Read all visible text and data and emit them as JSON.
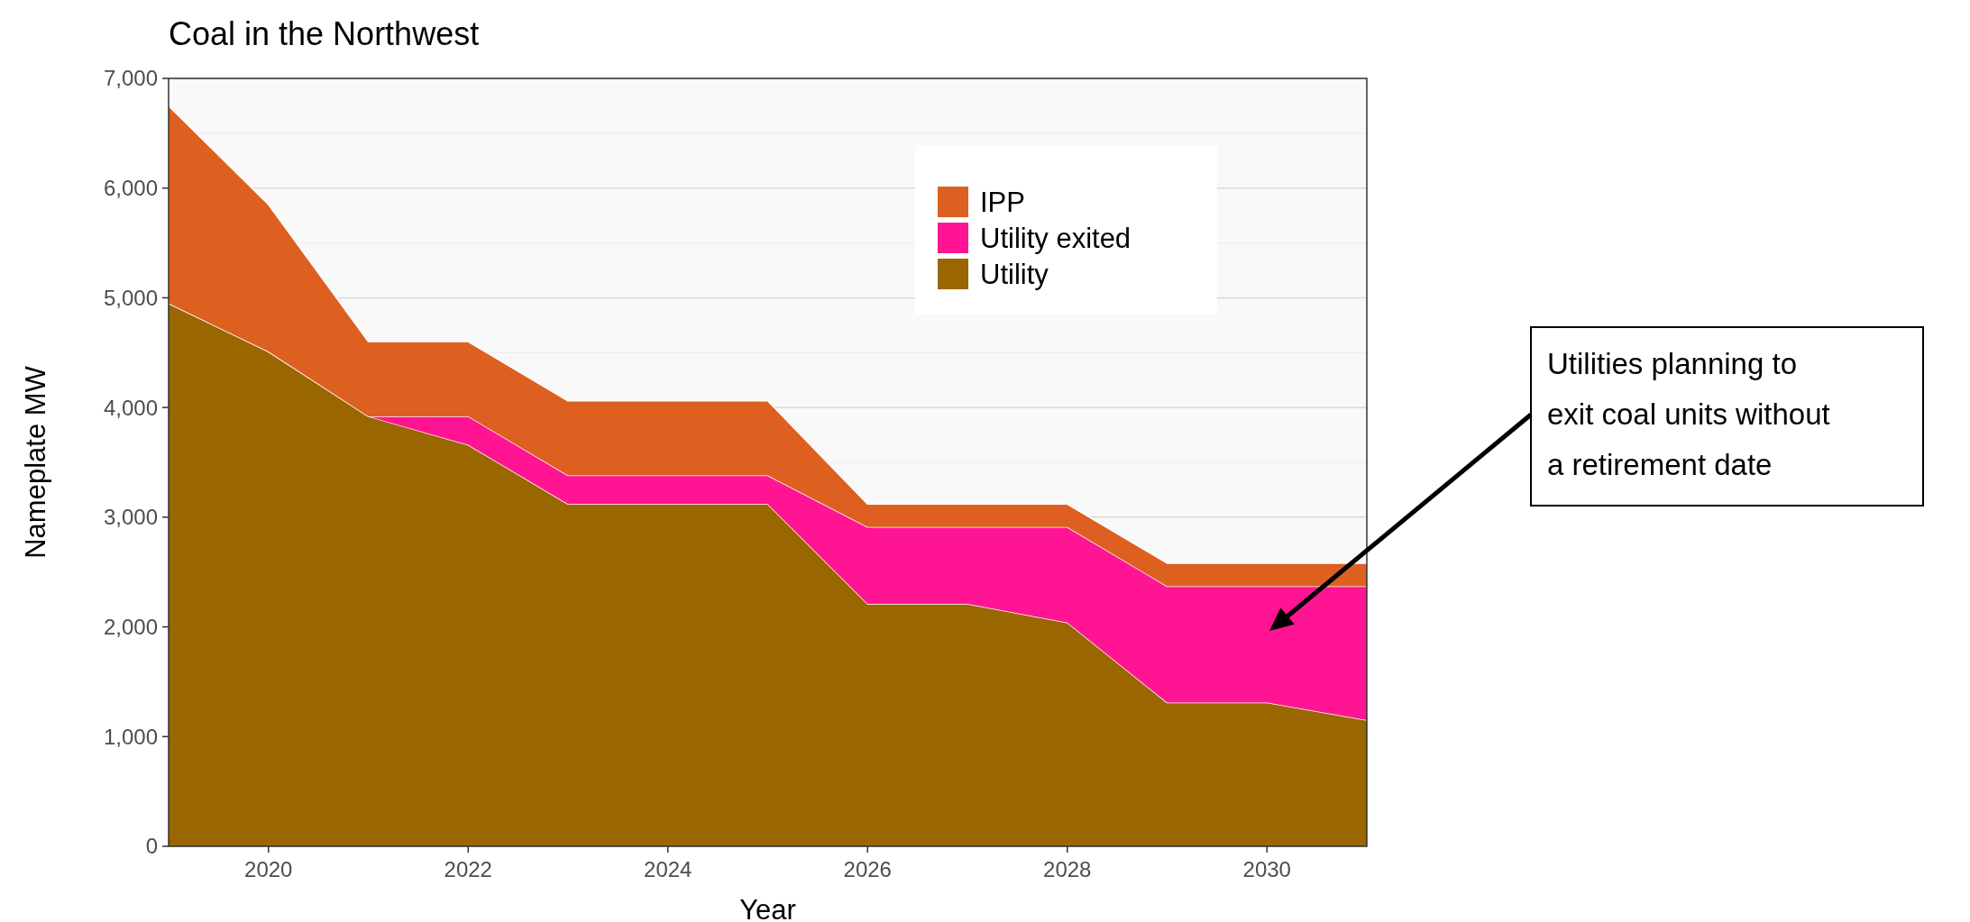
{
  "chart_data": {
    "type": "area",
    "stacked": true,
    "title": "Coal in the Northwest",
    "xlabel": "Year",
    "ylabel": "Nameplate MW",
    "x": [
      2019,
      2020,
      2021,
      2022,
      2023,
      2024,
      2025,
      2026,
      2027,
      2028,
      2029,
      2030,
      2031
    ],
    "series": [
      {
        "name": "Utility",
        "color": "#996600",
        "values": [
          4950,
          4510,
          3920,
          3660,
          3120,
          3120,
          3120,
          2210,
          2210,
          2040,
          1310,
          1310,
          1150
        ]
      },
      {
        "name": "Utility exited",
        "color": "#ff1493",
        "values": [
          0,
          0,
          0,
          260,
          260,
          260,
          260,
          700,
          700,
          870,
          1060,
          1060,
          1220
        ]
      },
      {
        "name": "IPP",
        "color": "#dd6020",
        "values": [
          1800,
          1340,
          680,
          680,
          680,
          680,
          680,
          210,
          210,
          210,
          210,
          210,
          210
        ]
      }
    ],
    "xlim": [
      2019,
      2031
    ],
    "xticks": [
      2020,
      2022,
      2024,
      2026,
      2028,
      2030
    ],
    "ylim": [
      0,
      7000
    ],
    "yticks": [
      {
        "value": 0,
        "label": "0"
      },
      {
        "value": 1000,
        "label": "1,000"
      },
      {
        "value": 2000,
        "label": "2,000"
      },
      {
        "value": 3000,
        "label": "3,000"
      },
      {
        "value": 4000,
        "label": "4,000"
      },
      {
        "value": 5000,
        "label": "5,000"
      },
      {
        "value": 6000,
        "label": "6,000"
      },
      {
        "value": 7000,
        "label": "7,000"
      }
    ],
    "grid": "y",
    "legend": "top right",
    "annotations": [
      "Utilities planning to exit coal units without a retirement date"
    ]
  }
}
